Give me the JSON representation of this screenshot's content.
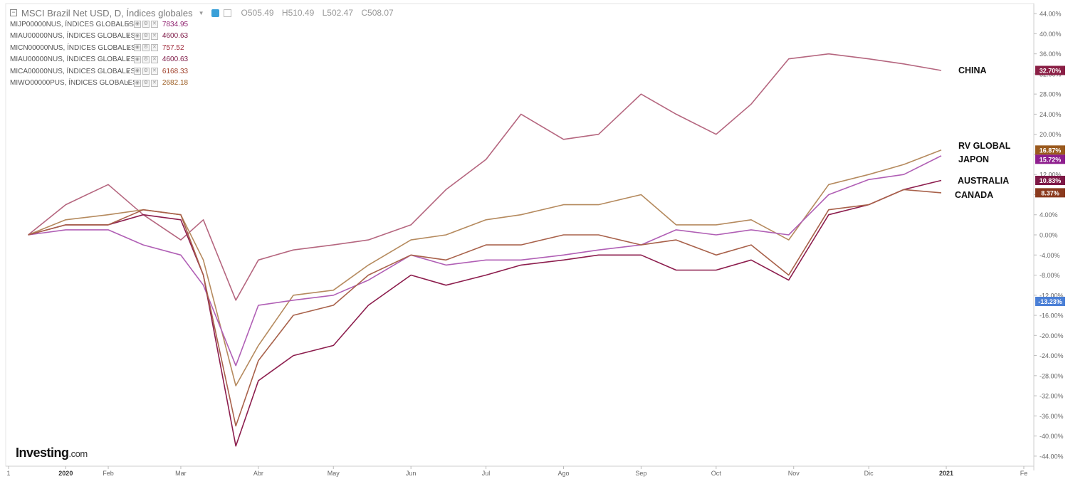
{
  "header": {
    "title": "MSCI Brazil Net USD, D, Índices globales",
    "ohlc": [
      "O505.49",
      "H510.49",
      "L502.47",
      "C508.07"
    ]
  },
  "legend": [
    {
      "name": "MIJP00000NUS, ÍNDICES GLOBALES",
      "value": "7834.95",
      "color": "#8e1f6e"
    },
    {
      "name": "MIAU00000NUS, ÍNDICES GLOBALES",
      "value": "4600.63",
      "color": "#7d1846"
    },
    {
      "name": "MICN00000NUS, ÍNDICES GLOBALES",
      "value": "757.52",
      "color": "#a02a3c"
    },
    {
      "name": "MIAU00000NUS, ÍNDICES GLOBALES",
      "value": "4600.63",
      "color": "#7d1846"
    },
    {
      "name": "MICA00000NUS, ÍNDICES GLOBALES",
      "value": "6168.33",
      "color": "#a0402a"
    },
    {
      "name": "MIWO00000PUS, ÍNDICES GLOBALES",
      "value": "2682.18",
      "color": "#9a5a1e"
    }
  ],
  "logo": {
    "brand": "Investing",
    "suffix": ".com"
  },
  "chart_data": {
    "type": "line",
    "x_dates": [
      "2019-12-31",
      "2020-01-15",
      "2020-02-01",
      "2020-02-15",
      "2020-03-01",
      "2020-03-10",
      "2020-03-23",
      "2020-04-01",
      "2020-04-15",
      "2020-05-01",
      "2020-05-15",
      "2020-06-01",
      "2020-06-15",
      "2020-07-01",
      "2020-07-15",
      "2020-08-01",
      "2020-08-15",
      "2020-09-01",
      "2020-09-15",
      "2020-10-01",
      "2020-10-15",
      "2020-10-30",
      "2020-11-15",
      "2020-12-01",
      "2020-12-15",
      "2020-12-30"
    ],
    "x_ticks": [
      "1",
      "2020",
      "Feb",
      "Mar",
      "Abr",
      "May",
      "Jun",
      "Jul",
      "Ago",
      "Sep",
      "Oct",
      "Nov",
      "Dic",
      "2021",
      "Fe"
    ],
    "y_ticks": [
      "44.00%",
      "40.00%",
      "36.00%",
      "32.00%",
      "28.00%",
      "24.00%",
      "20.00%",
      "16.00%",
      "12.00%",
      "8.00%",
      "4.00%",
      "0.00%",
      "-4.00%",
      "-8.00%",
      "-12.00%",
      "-16.00%",
      "-20.00%",
      "-24.00%",
      "-28.00%",
      "-32.00%",
      "-36.00%",
      "-40.00%",
      "-44.00%"
    ],
    "ylim": [
      -46,
      46
    ],
    "grid": false,
    "series": [
      {
        "name": "CHINA",
        "color": "#b5667f",
        "badge": "32.70%",
        "badge_color": "#8a1f45",
        "values": [
          0,
          6,
          10,
          4,
          -1,
          3,
          -13,
          -5,
          -3,
          -2,
          -1,
          2,
          9,
          15,
          24,
          19,
          20,
          28,
          24,
          20,
          26,
          35,
          36,
          35,
          34,
          32.7
        ]
      },
      {
        "name": "RV GLOBAL",
        "color": "#b58a5e",
        "badge": "16.87%",
        "badge_color": "#9a5a1e",
        "values": [
          0,
          3,
          4,
          5,
          4,
          -5,
          -30,
          -22,
          -12,
          -11,
          -6,
          -1,
          0,
          3,
          4,
          6,
          6,
          8,
          2,
          2,
          3,
          -1,
          10,
          12,
          14,
          16.87
        ]
      },
      {
        "name": "JAPON",
        "color": "#b05fb5",
        "badge": "15.72%",
        "badge_color": "#8e1f8e",
        "values": [
          0,
          1,
          1,
          -2,
          -4,
          -10,
          -26,
          -14,
          -13,
          -12,
          -9,
          -4,
          -6,
          -5,
          -5,
          -4,
          -3,
          -2,
          1,
          0,
          1,
          0,
          8,
          11,
          12,
          15.72
        ]
      },
      {
        "name": "AUSTRALIA",
        "color": "#8c1d4d",
        "badge": "10.83%",
        "badge_color": "#7d1846",
        "values": [
          0,
          2,
          2,
          4,
          3,
          -8,
          -42,
          -29,
          -24,
          -22,
          -14,
          -8,
          -10,
          -8,
          -6,
          -5,
          -4,
          -4,
          -7,
          -7,
          -5,
          -9,
          4,
          6,
          9,
          10.83
        ]
      },
      {
        "name": "CANADA",
        "color": "#a8614a",
        "badge": "8.37%",
        "badge_color": "#8a3a1e",
        "values": [
          0,
          2,
          2,
          5,
          4,
          -8,
          -38,
          -25,
          -16,
          -14,
          -8,
          -4,
          -5,
          -2,
          -2,
          0,
          0,
          -2,
          -1,
          -4,
          -2,
          -8,
          5,
          6,
          9,
          8.37
        ]
      }
    ],
    "hidden_series_badge": {
      "value": "-13.23%",
      "color": "#4a7fd6"
    },
    "annotations": [
      "CHINA",
      "RV GLOBAL",
      "JAPON",
      "AUSTRALIA",
      "CANADA"
    ]
  }
}
